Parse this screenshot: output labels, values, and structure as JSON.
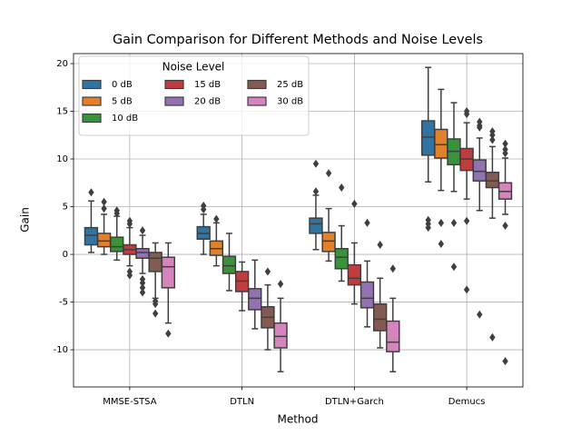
{
  "chart_data": {
    "type": "box",
    "title": "Gain Comparison for Different Methods and Noise Levels",
    "x_label": "Method",
    "y_label": "Gain",
    "categories": [
      "MMSE-STSA",
      "DTLN",
      "DTLN+Garch",
      "Demucs"
    ],
    "ylim": [
      -13.9,
      21.05
    ],
    "yticks": [
      -10,
      -5,
      0,
      5,
      10,
      15,
      20
    ],
    "grid": true,
    "legend": {
      "title": "Noise Level",
      "position": "upper left",
      "columns": 3
    },
    "series": [
      {
        "name": "0 dB",
        "color": "#3274a1",
        "boxes": [
          {
            "low": 0.2,
            "q1": 1.0,
            "median": 2.0,
            "q3": 2.8,
            "high": 5.6,
            "outliers": [
              6.5
            ]
          },
          {
            "low": 0,
            "q1": 1.6,
            "median": 2.2,
            "q3": 2.9,
            "high": 4.2,
            "outliers": [
              4.7,
              5.1
            ]
          },
          {
            "low": 0.5,
            "q1": 2.2,
            "median": 3.2,
            "q3": 3.8,
            "high": 6.2,
            "outliers": [
              6.6,
              9.5
            ]
          },
          {
            "low": 7.6,
            "q1": 10.4,
            "median": 12.3,
            "q3": 14.0,
            "high": 19.6,
            "outliers": [
              3.6,
              3.2,
              2.8
            ]
          }
        ]
      },
      {
        "name": "5 dB",
        "color": "#e1812c",
        "boxes": [
          {
            "low": 0,
            "q1": 0.8,
            "median": 1.4,
            "q3": 2.2,
            "high": 4.2,
            "outliers": [
              4.8,
              5.5
            ]
          },
          {
            "low": -1.2,
            "q1": -0.1,
            "median": 0.6,
            "q3": 1.4,
            "high": 3.3,
            "outliers": [
              3.7
            ]
          },
          {
            "low": -0.7,
            "q1": 0.3,
            "median": 1.4,
            "q3": 2.3,
            "high": 4.8,
            "outliers": [
              8.5
            ]
          },
          {
            "low": 6.7,
            "q1": 10.1,
            "median": 11.5,
            "q3": 13.1,
            "high": 17.3,
            "outliers": [
              3.3,
              1.1
            ]
          }
        ]
      },
      {
        "name": "10 dB",
        "color": "#3a923a",
        "boxes": [
          {
            "low": -0.6,
            "q1": 0.3,
            "median": 0.8,
            "q3": 1.8,
            "high": 4.0,
            "outliers": [
              4.3,
              4.6
            ]
          },
          {
            "low": -3.8,
            "q1": -2.0,
            "median": -1.2,
            "q3": -0.2,
            "high": 2.2,
            "outliers": []
          },
          {
            "low": -2.8,
            "q1": -1.5,
            "median": -0.3,
            "q3": 0.6,
            "high": 3.0,
            "outliers": [
              7.0
            ]
          },
          {
            "low": 6.6,
            "q1": 9.4,
            "median": 10.8,
            "q3": 12.1,
            "high": 15.9,
            "outliers": [
              3.3,
              -1.3
            ]
          }
        ]
      },
      {
        "name": "15 dB",
        "color": "#c03d3e",
        "boxes": [
          {
            "low": -1.2,
            "q1": 0,
            "median": 0.5,
            "q3": 1.0,
            "high": 2.8,
            "outliers": [
              3.2,
              3.5,
              -1.8,
              -2.2
            ]
          },
          {
            "low": -5.9,
            "q1": -3.9,
            "median": -2.8,
            "q3": -1.8,
            "high": -0.8,
            "outliers": []
          },
          {
            "low": -5.2,
            "q1": -3.2,
            "median": -2.5,
            "q3": -1.1,
            "high": 1.2,
            "outliers": [
              5.3
            ]
          },
          {
            "low": 5.8,
            "q1": 8.8,
            "median": 10.0,
            "q3": 11.1,
            "high": 13.8,
            "outliers": [
              15.0,
              14.7,
              3.5,
              -3.7
            ]
          }
        ]
      },
      {
        "name": "20 dB",
        "color": "#9372b2",
        "boxes": [
          {
            "low": -2.0,
            "q1": -0.4,
            "median": 0.2,
            "q3": 0.6,
            "high": 2.0,
            "outliers": [
              2.5,
              -2.6,
              -3.0,
              -3.5,
              -4.0
            ]
          },
          {
            "low": -7.8,
            "q1": -5.8,
            "median": -4.6,
            "q3": -3.6,
            "high": -0.6,
            "outliers": []
          },
          {
            "low": -7.6,
            "q1": -5.6,
            "median": -4.6,
            "q3": -2.9,
            "high": -0.7,
            "outliers": [
              3.3
            ]
          },
          {
            "low": 4.6,
            "q1": 7.7,
            "median": 8.7,
            "q3": 9.9,
            "high": 12.2,
            "outliers": [
              13.9,
              13.5,
              13.3,
              -6.3
            ]
          }
        ]
      },
      {
        "name": "25 dB",
        "color": "#845b53",
        "boxes": [
          {
            "low": -4.6,
            "q1": -1.8,
            "median": -0.4,
            "q3": 0.2,
            "high": 1.2,
            "outliers": [
              -4.9,
              -5.2,
              -6.2
            ]
          },
          {
            "low": -10,
            "q1": -7.7,
            "median": -6.6,
            "q3": -5.5,
            "high": -3.2,
            "outliers": [
              -1.8
            ]
          },
          {
            "low": -9.8,
            "q1": -8.0,
            "median": -6.8,
            "q3": -5.2,
            "high": -2.5,
            "outliers": [
              1.0
            ]
          },
          {
            "low": 3.8,
            "q1": 7.0,
            "median": 7.7,
            "q3": 8.6,
            "high": 11.3,
            "outliers": [
              12.9,
              12.5,
              12.0,
              -8.7
            ]
          }
        ]
      },
      {
        "name": "30 dB",
        "color": "#d684bd",
        "boxes": [
          {
            "low": -7.2,
            "q1": -3.5,
            "median": -1.3,
            "q3": -0.3,
            "high": 1.2,
            "outliers": [
              -8.3
            ]
          },
          {
            "low": -12.3,
            "q1": -9.8,
            "median": -8.6,
            "q3": -7.2,
            "high": -4.6,
            "outliers": [
              -3.1
            ]
          },
          {
            "low": -12.3,
            "q1": -10.2,
            "median": -9.2,
            "q3": -7.0,
            "high": -4.6,
            "outliers": [
              -1.5
            ]
          },
          {
            "low": 4.2,
            "q1": 5.8,
            "median": 6.6,
            "q3": 7.5,
            "high": 10.1,
            "outliers": [
              11.6,
              11.0,
              10.6,
              3.0,
              -11.2
            ]
          }
        ]
      }
    ]
  }
}
